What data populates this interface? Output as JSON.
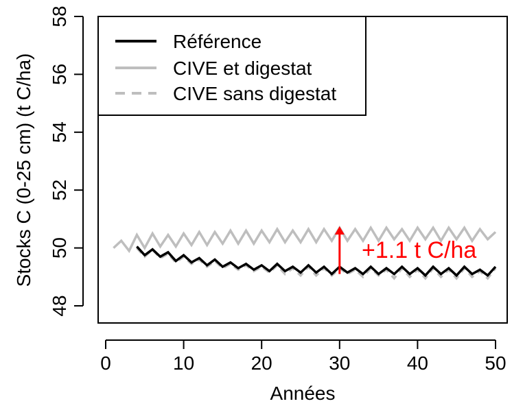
{
  "chart_data": {
    "type": "line",
    "title": "",
    "xlabel": "Années",
    "ylabel": "Stocks C (0-25 cm) (t C/ha)",
    "xlim": [
      0,
      51
    ],
    "ylim": [
      47.5,
      58
    ],
    "xticks": [
      0,
      10,
      20,
      30,
      40,
      50
    ],
    "yticks": [
      48,
      50,
      52,
      54,
      56,
      58
    ],
    "grid": false,
    "legend_position": "top-left",
    "colors": {
      "reference": "#000000",
      "cive": "#bebebe",
      "annotation": "#ff0000"
    },
    "series": [
      {
        "name": "Référence",
        "style": "solid",
        "color": "#000000",
        "x": [
          4,
          5,
          6,
          7,
          8,
          9,
          10,
          11,
          12,
          13,
          14,
          15,
          16,
          17,
          18,
          19,
          20,
          21,
          22,
          23,
          24,
          25,
          26,
          27,
          28,
          29,
          30,
          31,
          32,
          33,
          34,
          35,
          36,
          37,
          38,
          39,
          40,
          41,
          42,
          43,
          44,
          45,
          46,
          47,
          48,
          49,
          50
        ],
        "y": [
          50.05,
          49.75,
          49.95,
          49.7,
          49.85,
          49.55,
          49.75,
          49.5,
          49.65,
          49.4,
          49.6,
          49.35,
          49.5,
          49.3,
          49.45,
          49.25,
          49.4,
          49.2,
          49.45,
          49.2,
          49.35,
          49.15,
          49.4,
          49.15,
          49.35,
          49.1,
          49.35,
          49.15,
          49.3,
          49.1,
          49.35,
          49.1,
          49.3,
          49.1,
          49.35,
          49.1,
          49.3,
          49.05,
          49.35,
          49.1,
          49.3,
          49.05,
          49.35,
          49.1,
          49.25,
          49.05,
          49.35
        ]
      },
      {
        "name": "CIVE et digestat",
        "style": "solid",
        "color": "#bebebe",
        "x": [
          1,
          2,
          3,
          4,
          5,
          6,
          7,
          8,
          9,
          10,
          11,
          12,
          13,
          14,
          15,
          16,
          17,
          18,
          19,
          20,
          21,
          22,
          23,
          24,
          25,
          26,
          27,
          28,
          29,
          30,
          31,
          32,
          33,
          34,
          35,
          36,
          37,
          38,
          39,
          40,
          41,
          42,
          43,
          44,
          45,
          46,
          47,
          48,
          49,
          50
        ],
        "y": [
          50.0,
          50.25,
          49.9,
          50.45,
          50.0,
          50.5,
          50.05,
          50.45,
          50.05,
          50.5,
          50.1,
          50.55,
          50.1,
          50.55,
          50.15,
          50.6,
          50.15,
          50.6,
          50.15,
          50.6,
          50.2,
          50.65,
          50.2,
          50.6,
          50.2,
          50.65,
          50.2,
          50.65,
          50.25,
          50.7,
          50.25,
          50.65,
          50.25,
          50.7,
          50.25,
          50.7,
          50.3,
          50.65,
          50.25,
          50.7,
          50.3,
          50.7,
          50.25,
          50.7,
          50.3,
          50.7,
          50.25,
          50.65,
          50.3,
          50.55
        ]
      },
      {
        "name": "CIVE sans digestat",
        "style": "dashed",
        "color": "#bebebe",
        "x": [
          4,
          5,
          6,
          7,
          8,
          9,
          10,
          11,
          12,
          13,
          14,
          15,
          16,
          17,
          18,
          19,
          20,
          21,
          22,
          23,
          24,
          25,
          26,
          27,
          28,
          29,
          30,
          31,
          32,
          33,
          34,
          35,
          36,
          37,
          38,
          39,
          40,
          41,
          42,
          43,
          44,
          45,
          46,
          47,
          48,
          49,
          50
        ],
        "y": [
          50.0,
          49.7,
          49.95,
          49.65,
          49.8,
          49.5,
          49.7,
          49.45,
          49.6,
          49.35,
          49.55,
          49.3,
          49.45,
          49.25,
          49.4,
          49.2,
          49.35,
          49.15,
          49.4,
          49.1,
          49.3,
          49.05,
          49.35,
          49.05,
          49.3,
          49.05,
          49.3,
          49.1,
          49.25,
          49.0,
          49.3,
          49.05,
          49.25,
          48.95,
          49.3,
          49.0,
          49.25,
          48.95,
          49.3,
          49.0,
          49.25,
          48.95,
          49.3,
          49.0,
          49.2,
          48.95,
          49.3
        ]
      }
    ],
    "annotation": {
      "text": "+1.1 t C/ha",
      "arrow_x": 30,
      "arrow_from_y": 49.1,
      "arrow_to_y": 50.75,
      "color": "#ff0000"
    }
  }
}
